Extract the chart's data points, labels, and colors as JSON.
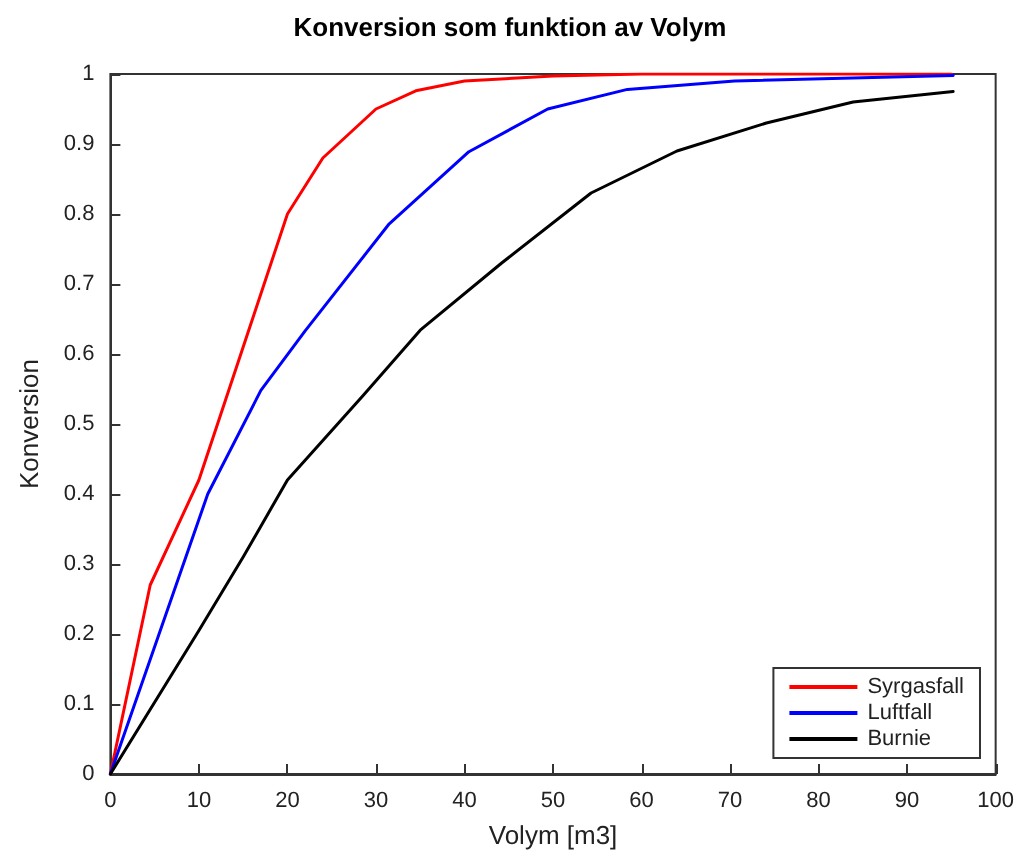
{
  "chart_data": {
    "type": "line",
    "title": "Konversion som funktion av Volym",
    "xlabel": "Volym [m3]",
    "ylabel": "Konversion",
    "xlim": [
      0,
      100
    ],
    "xticks": [
      0,
      10,
      20,
      30,
      40,
      50,
      60,
      70,
      80,
      90,
      100
    ],
    "ylim": [
      0,
      1
    ],
    "yticks": [
      0,
      0.1,
      0.2,
      0.3,
      0.4,
      0.5,
      0.6,
      0.7,
      0.8,
      0.9,
      1
    ],
    "grid": false,
    "legend": "bottom right",
    "marker": "none",
    "line_style": "solid",
    "series": [
      {
        "name": "Syrgasfall",
        "color": "#ff0000",
        "x": [
          0,
          4.5,
          10,
          15,
          20,
          24,
          30,
          34.5,
          40,
          50,
          60,
          70,
          80,
          95
        ],
        "values": [
          0,
          0.27,
          0.42,
          0.61,
          0.8,
          0.88,
          0.95,
          0.976,
          0.99,
          0.997,
          1,
          1,
          1,
          1
        ]
      },
      {
        "name": "Luftfall",
        "color": "#0000ff",
        "x": [
          0,
          11,
          17,
          22,
          31.5,
          40.5,
          49.4,
          58.4,
          70.5,
          95.2
        ],
        "values": [
          0,
          0.4,
          0.548,
          0.633,
          0.786,
          0.889,
          0.95,
          0.978,
          0.99,
          0.998
        ]
      },
      {
        "name": "Burnie",
        "color": "#000000",
        "x": [
          0,
          10,
          15,
          20,
          28.5,
          35,
          44.2,
          54.3,
          64,
          74.1,
          83.9,
          95.2
        ],
        "values": [
          0,
          0.205,
          0.31,
          0.42,
          0.54,
          0.634,
          0.73,
          0.83,
          0.89,
          0.93,
          0.96,
          0.975
        ]
      }
    ]
  }
}
